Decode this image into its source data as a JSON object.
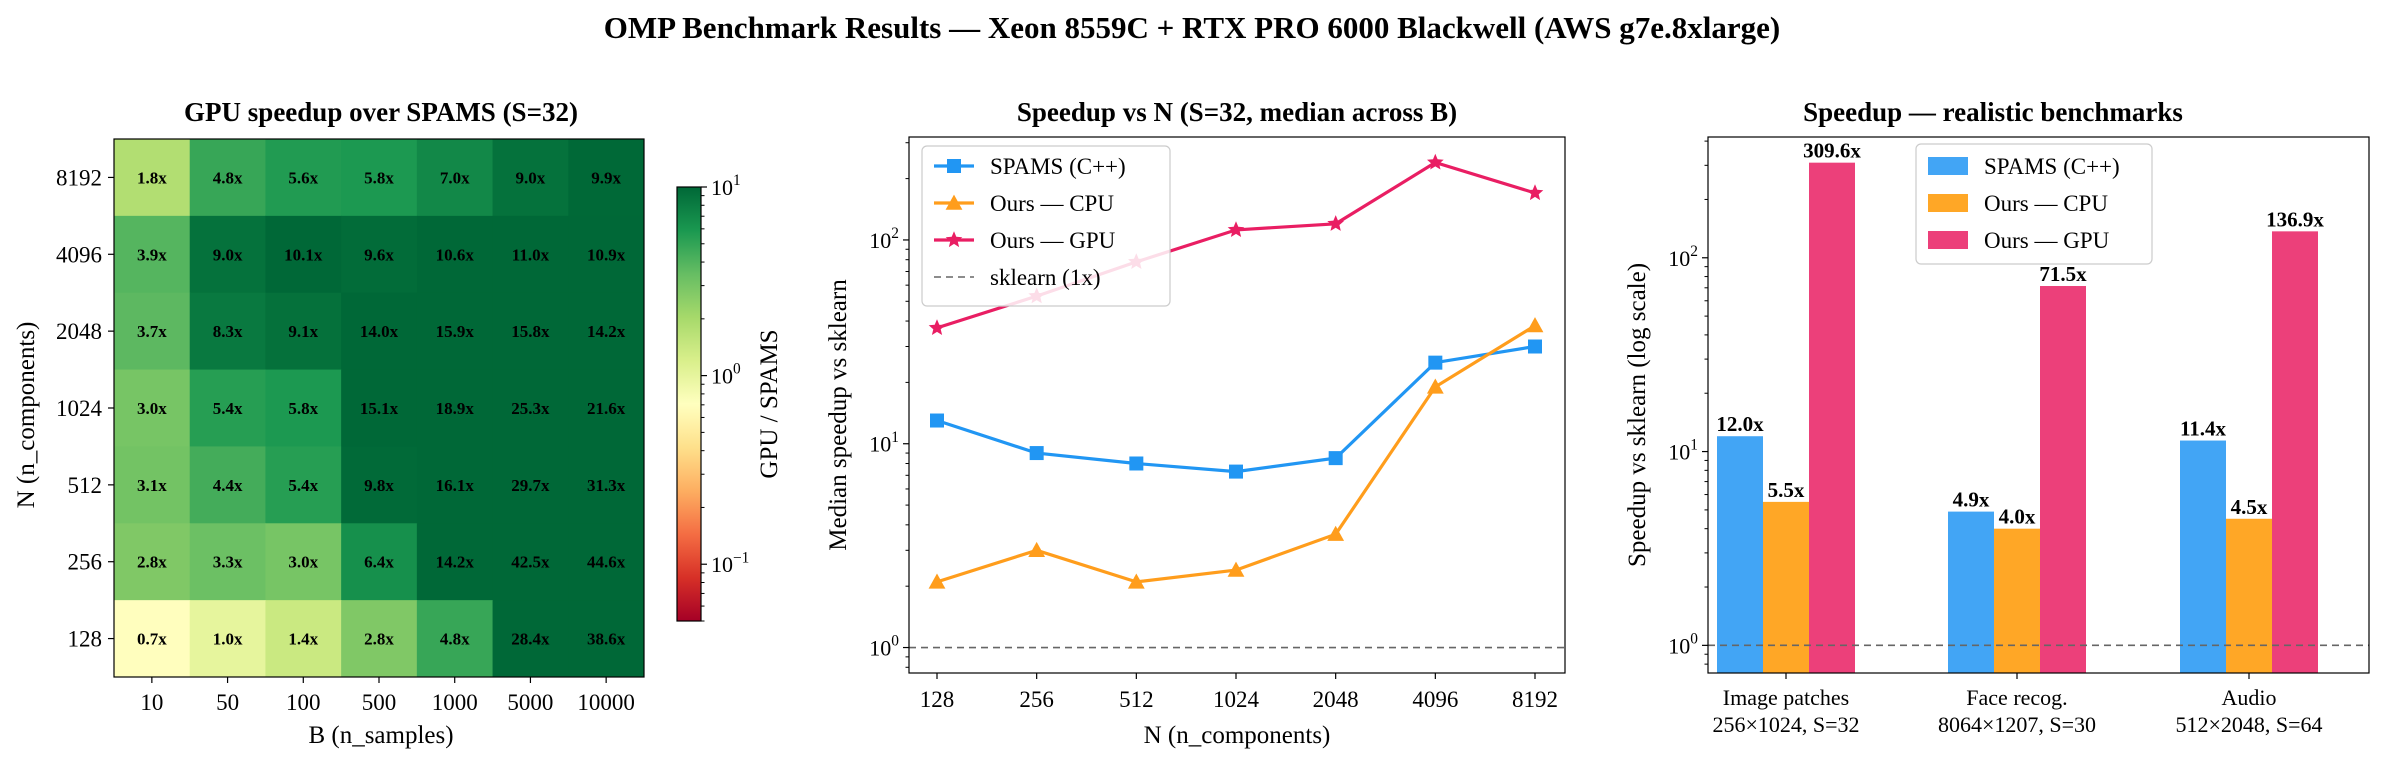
{
  "figure_title": "OMP Benchmark Results — Xeon 8559C + RTX PRO 6000 Blackwell (AWS g7e.8xlarge)",
  "chart_data": [
    {
      "type": "heatmap",
      "title": "GPU speedup over SPAMS (S=32)",
      "xlabel": "B (n_samples)",
      "ylabel": "N (n_components)",
      "x_categories": [
        "10",
        "50",
        "100",
        "500",
        "1000",
        "5000",
        "10000"
      ],
      "y_categories": [
        "8192",
        "4096",
        "2048",
        "1024",
        "512",
        "256",
        "128"
      ],
      "values": [
        [
          1.8,
          4.8,
          5.6,
          5.8,
          7.0,
          9.0,
          9.9
        ],
        [
          3.9,
          9.0,
          10.1,
          9.6,
          10.6,
          11.0,
          10.9
        ],
        [
          3.7,
          8.3,
          9.1,
          14.0,
          15.9,
          15.8,
          14.2
        ],
        [
          3.0,
          5.4,
          5.8,
          15.1,
          18.9,
          25.3,
          21.6
        ],
        [
          3.1,
          4.4,
          5.4,
          9.8,
          16.1,
          29.7,
          31.3
        ],
        [
          2.8,
          3.3,
          3.0,
          6.4,
          14.2,
          42.5,
          44.6
        ],
        [
          0.7,
          1.0,
          1.4,
          2.8,
          4.8,
          28.4,
          38.6
        ]
      ],
      "cell_labels": [
        [
          "1.8x",
          "4.8x",
          "5.6x",
          "5.8x",
          "7.0x",
          "9.0x",
          "9.9x"
        ],
        [
          "3.9x",
          "9.0x",
          "10.1x",
          "9.6x",
          "10.6x",
          "11.0x",
          "10.9x"
        ],
        [
          "3.7x",
          "8.3x",
          "9.1x",
          "14.0x",
          "15.9x",
          "15.8x",
          "14.2x"
        ],
        [
          "3.0x",
          "5.4x",
          "5.8x",
          "15.1x",
          "18.9x",
          "25.3x",
          "21.6x"
        ],
        [
          "3.1x",
          "4.4x",
          "5.4x",
          "9.8x",
          "16.1x",
          "29.7x",
          "31.3x"
        ],
        [
          "2.8x",
          "3.3x",
          "3.0x",
          "6.4x",
          "14.2x",
          "42.5x",
          "44.6x"
        ],
        [
          "0.7x",
          "1.0x",
          "1.4x",
          "2.8x",
          "4.8x",
          "28.4x",
          "38.6x"
        ]
      ],
      "colorbar": {
        "label": "GPU / SPAMS",
        "scale": "log",
        "range": [
          0.05,
          10
        ],
        "colormap": "RdYlGn",
        "ticks": [
          {
            "value": 10,
            "base": "10",
            "exp": "1"
          },
          {
            "value": 1,
            "base": "10",
            "exp": "0"
          },
          {
            "value": 0.1,
            "base": "10",
            "exp": "−1"
          }
        ]
      }
    },
    {
      "type": "line",
      "title": "Speedup vs N (S=32, median across B)",
      "xlabel": "N (n_components)",
      "ylabel": "Median speedup vs sklearn",
      "x": [
        "128",
        "256",
        "512",
        "1024",
        "2048",
        "4096",
        "8192"
      ],
      "y_scale": "log",
      "ylim": [
        0.75,
        320
      ],
      "y_ticks": [
        {
          "value": 1,
          "base": "10",
          "exp": "0"
        },
        {
          "value": 10,
          "base": "10",
          "exp": "1"
        },
        {
          "value": 100,
          "base": "10",
          "exp": "2"
        }
      ],
      "series": [
        {
          "name": "SPAMS (C++)",
          "color": "#2196f3",
          "marker": "square",
          "values": [
            13.0,
            9.0,
            8.0,
            7.3,
            8.5,
            25.0,
            30.0
          ]
        },
        {
          "name": "Ours — CPU",
          "color": "#ff9d1c",
          "marker": "triangle",
          "values": [
            2.1,
            3.0,
            2.1,
            2.4,
            3.6,
            19.0,
            38.0
          ]
        },
        {
          "name": "Ours — GPU",
          "color": "#e91e63",
          "marker": "star",
          "values": [
            37,
            53,
            78,
            112,
            120,
            240,
            170
          ]
        }
      ],
      "reference_line": {
        "name": "sklearn (1x)",
        "value": 1,
        "color": "#666666"
      },
      "legend": "top-left"
    },
    {
      "type": "bar",
      "title": "Speedup — realistic benchmarks",
      "ylabel": "Speedup vs sklearn (log scale)",
      "categories": [
        [
          "Image patches",
          "256×1024, S=32"
        ],
        [
          "Face recog.",
          "8064×1207, S=30"
        ],
        [
          "Audio",
          "512×2048, S=64"
        ]
      ],
      "y_scale": "log",
      "ylim": [
        0.72,
        420
      ],
      "y_ticks": [
        {
          "value": 1,
          "base": "10",
          "exp": "0"
        },
        {
          "value": 10,
          "base": "10",
          "exp": "1"
        },
        {
          "value": 100,
          "base": "10",
          "exp": "2"
        }
      ],
      "series": [
        {
          "name": "SPAMS (C++)",
          "color": "#42a5f5",
          "values": [
            12.0,
            4.9,
            11.4
          ],
          "labels": [
            "12.0x",
            "4.9x",
            "11.4x"
          ]
        },
        {
          "name": "Ours — CPU",
          "color": "#ffa726",
          "values": [
            5.5,
            4.0,
            4.5
          ],
          "labels": [
            "5.5x",
            "4.0x",
            "4.5x"
          ]
        },
        {
          "name": "Ours — GPU",
          "color": "#ec407a",
          "values": [
            309.6,
            71.5,
            136.9
          ],
          "labels": [
            "309.6x",
            "71.5x",
            "136.9x"
          ]
        }
      ],
      "reference_line": {
        "value": 1,
        "color": "#666666"
      },
      "legend": "top-center"
    }
  ]
}
